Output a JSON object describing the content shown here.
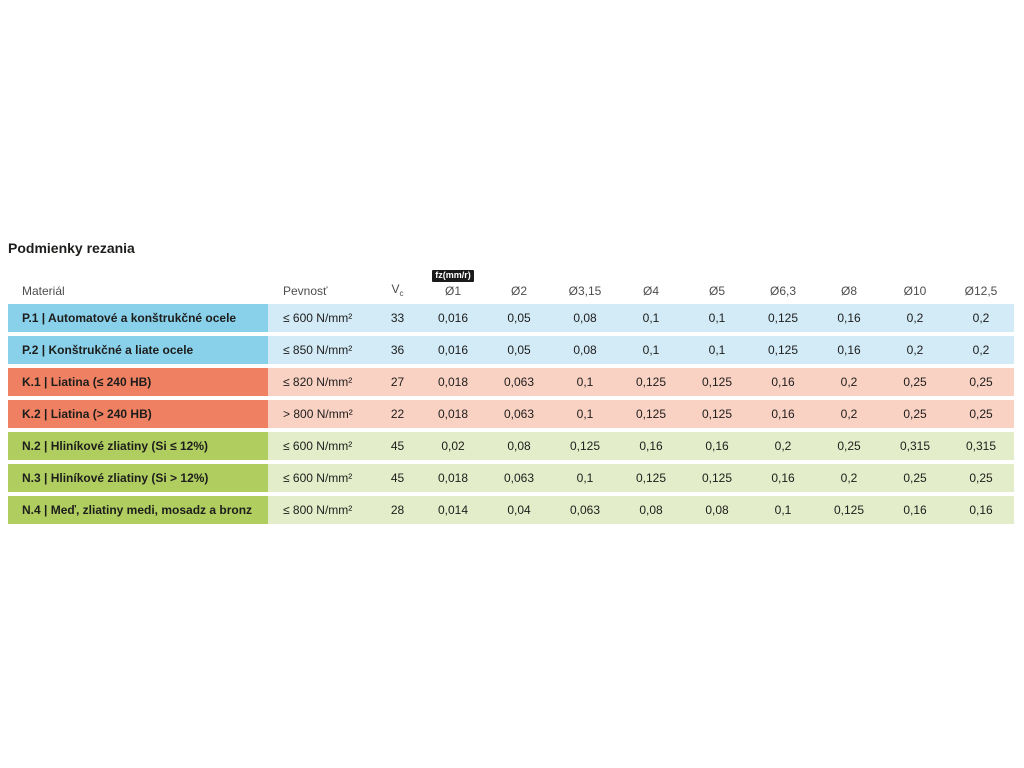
{
  "title": "Podmienky rezania",
  "header": {
    "material": "Materiál",
    "strength": "Pevnosť",
    "vc_main": "V",
    "vc_sub": "c",
    "fz_badge": "fz(mm/r)"
  },
  "colors": {
    "text": "#1d1d1b",
    "header_text": "#4d4d4c",
    "badge_bg": "#1a1a1a",
    "badge_text": "#ffffff",
    "groups": {
      "P": {
        "label": "#89d0ea",
        "row": "#d2ebf7"
      },
      "K": {
        "label": "#ef8162",
        "row": "#f9d2c4"
      },
      "N": {
        "label": "#b0ce60",
        "row": "#e4edca"
      }
    }
  },
  "chart_data": {
    "type": "table",
    "title": "Podmienky rezania",
    "columns": [
      "Materiál",
      "Pevnosť",
      "Vc",
      "Ø1",
      "Ø2",
      "Ø3,15",
      "Ø4",
      "Ø5",
      "Ø6,3",
      "Ø8",
      "Ø10",
      "Ø12,5"
    ],
    "feed_unit_label": "fz(mm/r)",
    "diameter_headers": [
      "Ø1",
      "Ø2",
      "Ø3,15",
      "Ø4",
      "Ø5",
      "Ø6,3",
      "Ø8",
      "Ø10",
      "Ø12,5"
    ],
    "rows": [
      {
        "group": "P",
        "material": "P.1 | Automatové a konštrukčné ocele",
        "strength": "≤ 600 N/mm²",
        "vc": "33",
        "fz": [
          "0,016",
          "0,05",
          "0,08",
          "0,1",
          "0,1",
          "0,125",
          "0,16",
          "0,2",
          "0,2"
        ]
      },
      {
        "group": "P",
        "material": "P.2 | Konštrukčné a liate ocele",
        "strength": "≤ 850 N/mm²",
        "vc": "36",
        "fz": [
          "0,016",
          "0,05",
          "0,08",
          "0,1",
          "0,1",
          "0,125",
          "0,16",
          "0,2",
          "0,2"
        ]
      },
      {
        "group": "K",
        "material": "K.1 | Liatina (≤ 240 HB)",
        "strength": "≤ 820 N/mm²",
        "vc": "27",
        "fz": [
          "0,018",
          "0,063",
          "0,1",
          "0,125",
          "0,125",
          "0,16",
          "0,2",
          "0,25",
          "0,25"
        ]
      },
      {
        "group": "K",
        "material": "K.2 | Liatina (> 240 HB)",
        "strength": "> 800 N/mm²",
        "vc": "22",
        "fz": [
          "0,018",
          "0,063",
          "0,1",
          "0,125",
          "0,125",
          "0,16",
          "0,2",
          "0,25",
          "0,25"
        ]
      },
      {
        "group": "N",
        "material": "N.2 | Hliníkové zliatiny (Si ≤ 12%)",
        "strength": "≤ 600 N/mm²",
        "vc": "45",
        "fz": [
          "0,02",
          "0,08",
          "0,125",
          "0,16",
          "0,16",
          "0,2",
          "0,25",
          "0,315",
          "0,315"
        ]
      },
      {
        "group": "N",
        "material": "N.3 | Hliníkové zliatiny (Si > 12%)",
        "strength": "≤ 600 N/mm²",
        "vc": "45",
        "fz": [
          "0,018",
          "0,063",
          "0,1",
          "0,125",
          "0,125",
          "0,16",
          "0,2",
          "0,25",
          "0,25"
        ]
      },
      {
        "group": "N",
        "material": "N.4 | Meď, zliatiny medi, mosadz a bronz",
        "strength": "≤ 800 N/mm²",
        "vc": "28",
        "fz": [
          "0,014",
          "0,04",
          "0,063",
          "0,08",
          "0,08",
          "0,1",
          "0,125",
          "0,16",
          "0,16"
        ]
      }
    ]
  }
}
